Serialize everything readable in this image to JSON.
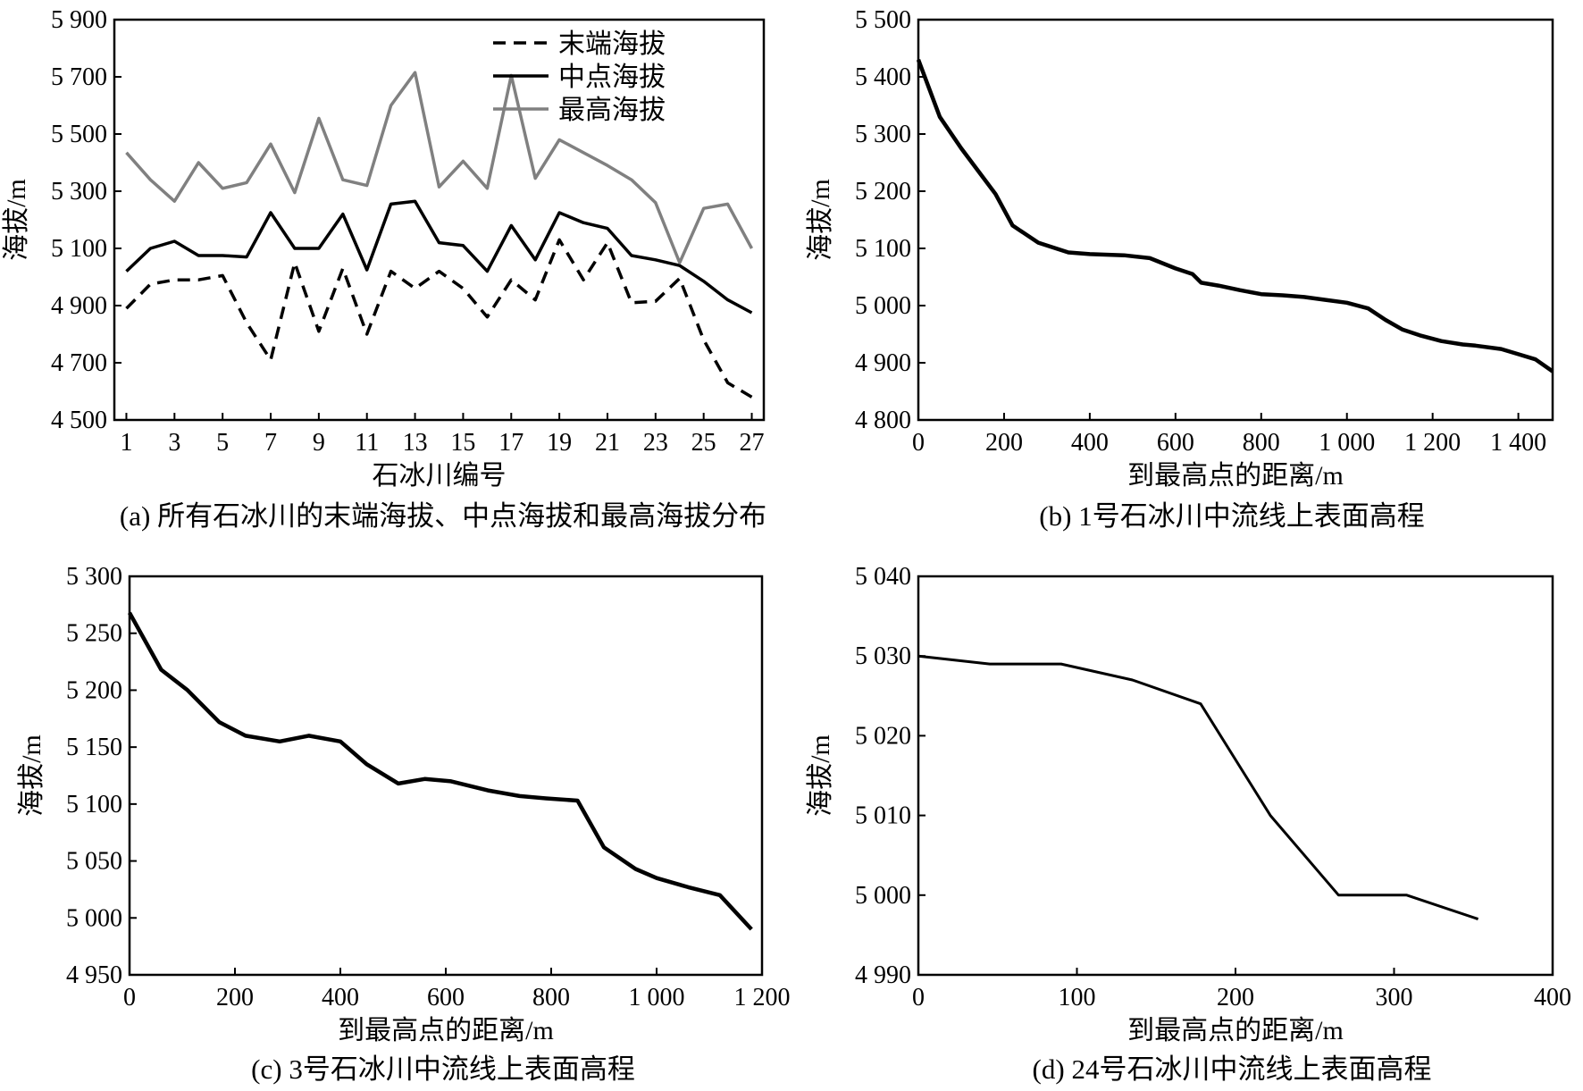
{
  "chart_data": [
    {
      "id": "a",
      "type": "line",
      "caption": "(a) 所有石冰川的末端海拔、中点海拔和最高海拔分布",
      "xlabel": "石冰川编号",
      "ylabel": "海拔/m",
      "xlim": [
        0.5,
        27.5
      ],
      "ylim": [
        4500,
        5900
      ],
      "xticks": [
        1,
        3,
        5,
        7,
        9,
        11,
        13,
        15,
        17,
        19,
        21,
        23,
        25,
        27
      ],
      "xtick_labels": [
        "1",
        "3",
        "5",
        "7",
        "9",
        "11",
        "13",
        "15",
        "17",
        "19",
        "21",
        "23",
        "25",
        "27"
      ],
      "yticks": [
        4500,
        4700,
        4900,
        5100,
        5300,
        5500,
        5700,
        5900
      ],
      "ytick_labels": [
        "4 500",
        "4 700",
        "4 900",
        "5 100",
        "5 300",
        "5 500",
        "5 700",
        "5 900"
      ],
      "legend_position": "top-right",
      "x": [
        1,
        2,
        3,
        4,
        5,
        6,
        7,
        8,
        9,
        10,
        11,
        12,
        13,
        14,
        15,
        16,
        17,
        18,
        19,
        20,
        21,
        22,
        23,
        24,
        25,
        26,
        27
      ],
      "series": [
        {
          "name": "末端海拔",
          "style": "dashed",
          "color": "#000000",
          "values": [
            4890,
            4975,
            4990,
            4990,
            5005,
            4840,
            4710,
            5050,
            4810,
            5030,
            4800,
            5020,
            4960,
            5020,
            4960,
            4860,
            4990,
            4920,
            5130,
            4990,
            5120,
            4910,
            4915,
            4995,
            4780,
            4630,
            4580
          ]
        },
        {
          "name": "中点海拔",
          "style": "solid",
          "color": "#000000",
          "values": [
            5020,
            5100,
            5125,
            5075,
            5075,
            5070,
            5225,
            5100,
            5100,
            5220,
            5025,
            5255,
            5265,
            5120,
            5110,
            5020,
            5180,
            5060,
            5225,
            5190,
            5170,
            5075,
            5060,
            5040,
            4985,
            4920,
            4875
          ]
        },
        {
          "name": "最高海拔",
          "style": "solid",
          "color": "#808080",
          "values": [
            5435,
            5340,
            5265,
            5400,
            5310,
            5330,
            5465,
            5295,
            5555,
            5340,
            5320,
            5600,
            5715,
            5315,
            5405,
            5310,
            5705,
            5345,
            5480,
            5435,
            5390,
            5340,
            5260,
            5050,
            5240,
            5255,
            5100
          ]
        }
      ]
    },
    {
      "id": "b",
      "type": "line",
      "caption": "(b) 1号石冰川中流线上表面高程",
      "xlabel": "到最高点的距离/m",
      "ylabel": "海拔/m",
      "xlim": [
        0,
        1480
      ],
      "ylim": [
        4800,
        5500
      ],
      "xticks": [
        0,
        200,
        400,
        600,
        800,
        1000,
        1200,
        1400
      ],
      "xtick_labels": [
        "0",
        "200",
        "400",
        "600",
        "800",
        "1 000",
        "1 200",
        "1 400"
      ],
      "yticks": [
        4800,
        4900,
        5000,
        5100,
        5200,
        5300,
        5400,
        5500
      ],
      "ytick_labels": [
        "4 800",
        "4 900",
        "5 000",
        "5 100",
        "5 200",
        "5 300",
        "5 400",
        "5 500"
      ],
      "series": [
        {
          "name": "1号石冰川",
          "style": "solid",
          "color": "#000000",
          "x": [
            0,
            25,
            50,
            100,
            150,
            180,
            220,
            280,
            350,
            400,
            480,
            540,
            600,
            640,
            660,
            700,
            750,
            800,
            850,
            900,
            950,
            1000,
            1050,
            1090,
            1130,
            1170,
            1220,
            1270,
            1300,
            1360,
            1400,
            1440,
            1480
          ],
          "values": [
            5430,
            5380,
            5330,
            5275,
            5225,
            5195,
            5140,
            5110,
            5093,
            5090,
            5088,
            5083,
            5065,
            5055,
            5040,
            5035,
            5027,
            5020,
            5018,
            5015,
            5010,
            5005,
            4995,
            4975,
            4958,
            4948,
            4938,
            4932,
            4930,
            4924,
            4915,
            4906,
            4885
          ]
        }
      ]
    },
    {
      "id": "c",
      "type": "line",
      "caption": "(c) 3号石冰川中流线上表面高程",
      "xlabel": "到最高点的距离/m",
      "ylabel": "海拔/m",
      "xlim": [
        0,
        1200
      ],
      "ylim": [
        4950,
        5300
      ],
      "xticks": [
        0,
        200,
        400,
        600,
        800,
        1000,
        1200
      ],
      "xtick_labels": [
        "0",
        "200",
        "400",
        "600",
        "800",
        "1 000",
        "1 200"
      ],
      "yticks": [
        4950,
        5000,
        5050,
        5100,
        5150,
        5200,
        5250,
        5300
      ],
      "ytick_labels": [
        "4 950",
        "5 000",
        "5 050",
        "5 100",
        "5 150",
        "5 200",
        "5 250",
        "5 300"
      ],
      "series": [
        {
          "name": "3号石冰川",
          "style": "solid",
          "color": "#000000",
          "x": [
            0,
            60,
            110,
            170,
            220,
            285,
            340,
            400,
            450,
            510,
            560,
            610,
            680,
            740,
            790,
            850,
            900,
            960,
            1000,
            1060,
            1120,
            1180
          ],
          "values": [
            5268,
            5218,
            5200,
            5172,
            5160,
            5155,
            5160,
            5155,
            5135,
            5118,
            5122,
            5120,
            5112,
            5107,
            5105,
            5103,
            5062,
            5043,
            5035,
            5027,
            5020,
            4990
          ]
        }
      ]
    },
    {
      "id": "d",
      "type": "line",
      "caption": "(d) 24号石冰川中流线上表面高程",
      "xlabel": "到最高点的距离/m",
      "ylabel": "海拔/m",
      "xlim": [
        0,
        400
      ],
      "ylim": [
        4990,
        5040
      ],
      "xticks": [
        0,
        100,
        200,
        300,
        400
      ],
      "xtick_labels": [
        "0",
        "100",
        "200",
        "300",
        "400"
      ],
      "yticks": [
        4990,
        5000,
        5010,
        5020,
        5030,
        5040
      ],
      "ytick_labels": [
        "4 990",
        "5 000",
        "5 010",
        "5 020",
        "5 030",
        "5 040"
      ],
      "series": [
        {
          "name": "24号石冰川",
          "style": "solid",
          "color": "#000000",
          "x": [
            0,
            45,
            90,
            135,
            178,
            222,
            265,
            308,
            353
          ],
          "values": [
            5030,
            5029,
            5029,
            5027,
            5024,
            5010,
            5000,
            5000,
            4997
          ]
        }
      ]
    }
  ]
}
